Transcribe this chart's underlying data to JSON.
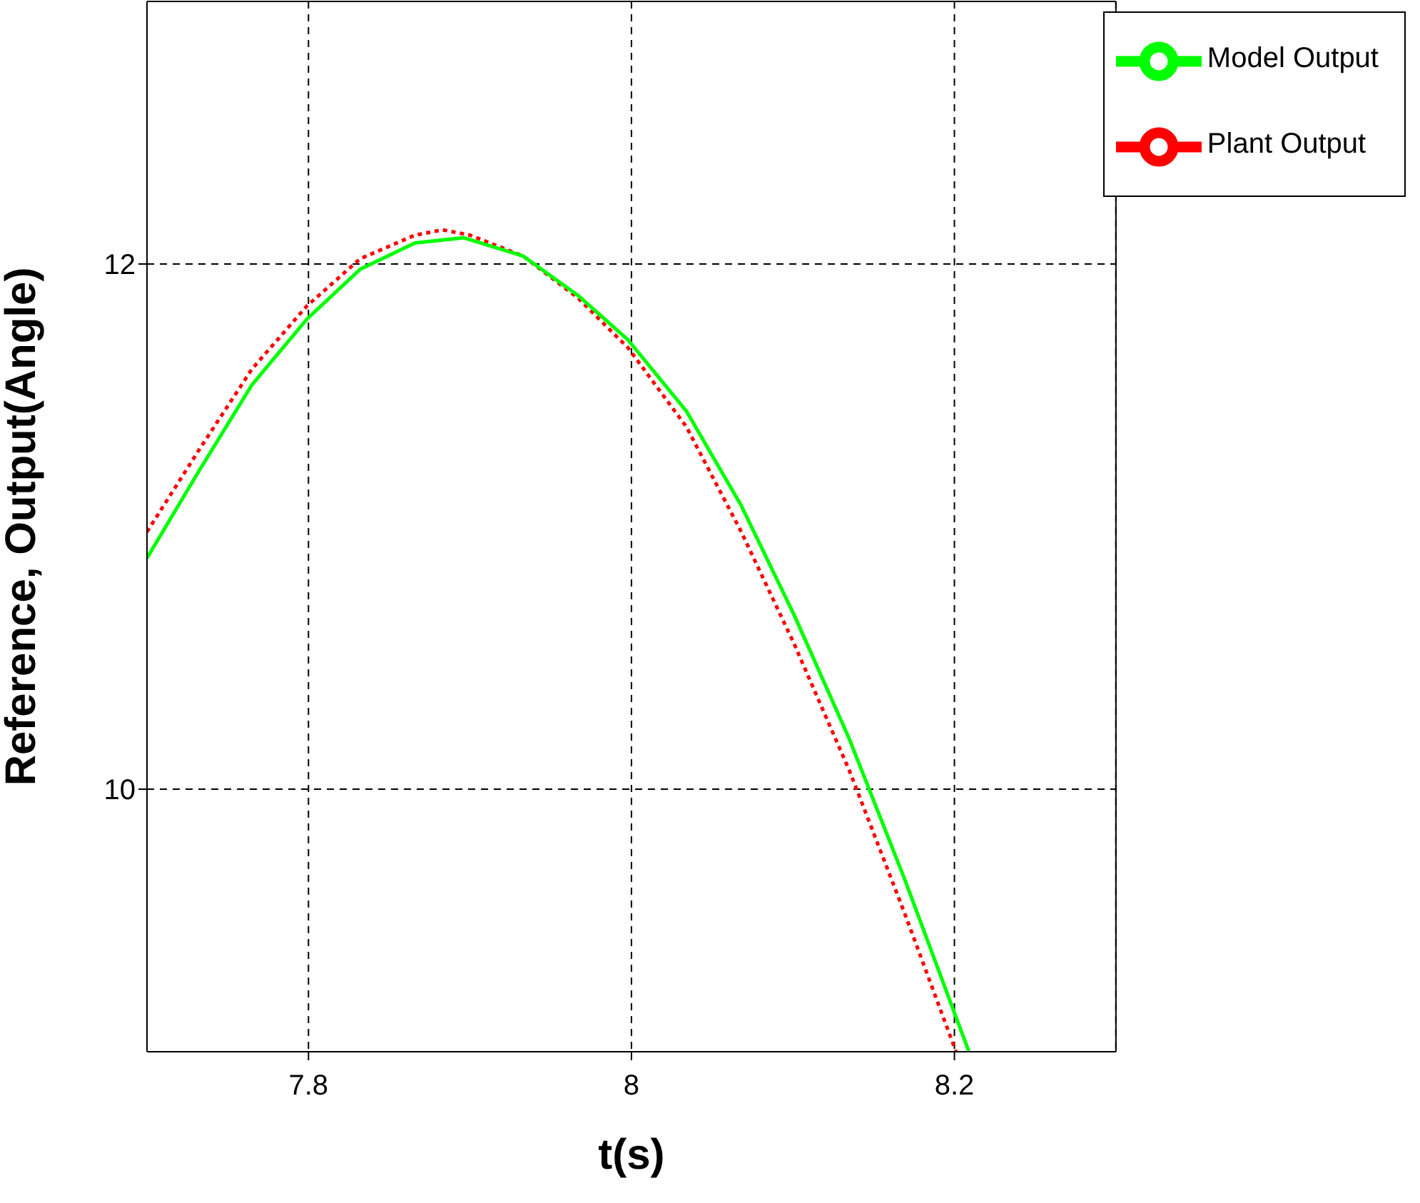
{
  "chart_data": {
    "type": "line",
    "xlabel": "t(s)",
    "ylabel": "Reference, Output(Angle)",
    "xlim": [
      7.7,
      8.3
    ],
    "xticks": [
      7.8,
      8,
      8.2
    ],
    "ylim": [
      9,
      13
    ],
    "yticks": [
      10,
      12
    ],
    "grid": true,
    "legend": "top right",
    "marker": "none",
    "series": [
      {
        "name": "Plant Output",
        "color": "#ff0000",
        "line_style": "dotted",
        "x": [
          7.7,
          7.732,
          7.765,
          7.799,
          7.832,
          7.866,
          7.883,
          7.9,
          7.933,
          7.967,
          7.998,
          8.034,
          8.068,
          8.101,
          8.135,
          8.169,
          8.201
        ],
        "values": [
          10.98,
          11.29,
          11.6,
          11.84,
          12.02,
          12.11,
          12.13,
          12.11,
          12.03,
          11.87,
          11.68,
          11.38,
          10.98,
          10.55,
          10.07,
          9.53,
          9.0
        ]
      },
      {
        "name": "Model Output",
        "color": "#00ff00",
        "line_style": "solid",
        "x": [
          7.7,
          7.732,
          7.765,
          7.799,
          7.832,
          7.866,
          7.896,
          7.933,
          7.967,
          7.998,
          8.034,
          8.068,
          8.101,
          8.135,
          8.169,
          8.209
        ],
        "values": [
          10.88,
          11.21,
          11.54,
          11.79,
          11.98,
          12.08,
          12.1,
          12.03,
          11.88,
          11.71,
          11.44,
          11.08,
          10.66,
          10.19,
          9.66,
          9.0
        ]
      }
    ]
  }
}
